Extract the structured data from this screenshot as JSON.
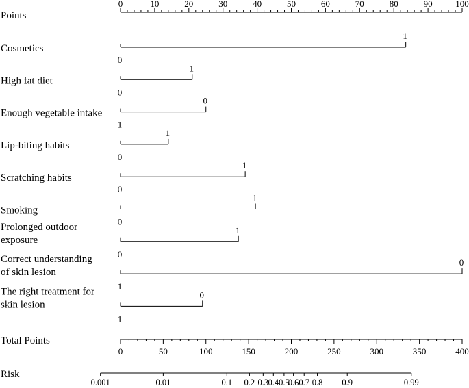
{
  "chart_data": {
    "type": "nomogram",
    "points_axis": {
      "label": "Points",
      "range": [
        0,
        100
      ],
      "major_ticks": [
        0,
        10,
        20,
        30,
        40,
        50,
        60,
        70,
        80,
        90,
        100
      ],
      "minor_step": 2
    },
    "variables": [
      {
        "name": "Cosmetics",
        "label_lines": [
          "Cosmetics"
        ],
        "left_level": "0",
        "right_level": "1",
        "points": 83.5
      },
      {
        "name": "High fat diet",
        "label_lines": [
          "High fat diet"
        ],
        "left_level": "0",
        "right_level": "1",
        "points": 21
      },
      {
        "name": "Enough vegetable intake",
        "label_lines": [
          "Enough vegetable intake"
        ],
        "left_level": "1",
        "right_level": "0",
        "points": 25
      },
      {
        "name": "Lip-biting habits",
        "label_lines": [
          "Lip-biting habits"
        ],
        "left_level": "0",
        "right_level": "1",
        "points": 14
      },
      {
        "name": "Scratching habits",
        "label_lines": [
          "Scratching habits"
        ],
        "left_level": "0",
        "right_level": "1",
        "points": 36.5
      },
      {
        "name": "Smoking",
        "label_lines": [
          "Smoking"
        ],
        "left_level": "0",
        "right_level": "1",
        "points": 39.5
      },
      {
        "name": "Prolonged outdoor exposure",
        "label_lines": [
          "Prolonged outdoor",
          "exposure"
        ],
        "left_level": "0",
        "right_level": "1",
        "points": 34.5
      },
      {
        "name": "Correct understanding of skin lesion",
        "label_lines": [
          "Correct understanding",
          "of skin lesion"
        ],
        "left_level": "1",
        "right_level": "0",
        "points": 100
      },
      {
        "name": "The right treatment for skin lesion",
        "label_lines": [
          "The right treatment for",
          "skin lesion"
        ],
        "left_level": "1",
        "right_level": "0",
        "points": 24
      }
    ],
    "total_points_axis": {
      "label": "Total Points",
      "range": [
        0,
        400
      ],
      "major_ticks": [
        0,
        50,
        100,
        150,
        200,
        250,
        300,
        350,
        400
      ],
      "minor_step": 10
    },
    "risk_axis": {
      "label": "Risk",
      "ticks": [
        {
          "label": "0.001",
          "total_points": -23.5
        },
        {
          "label": "0.01",
          "total_points": 50
        },
        {
          "label": "0.1",
          "total_points": 124.5
        },
        {
          "label": "0.2",
          "total_points": 151
        },
        {
          "label": "0.3",
          "total_points": 167
        },
        {
          "label": "0.4",
          "total_points": 179
        },
        {
          "label": "0.5",
          "total_points": 191.5
        },
        {
          "label": "0.6",
          "total_points": 202.5
        },
        {
          "label": "0.7",
          "total_points": 215
        },
        {
          "label": "0.8",
          "total_points": 230.5
        },
        {
          "label": "0.9",
          "total_points": 265.5
        },
        {
          "label": "0.99",
          "total_points": 340.5
        }
      ]
    }
  }
}
